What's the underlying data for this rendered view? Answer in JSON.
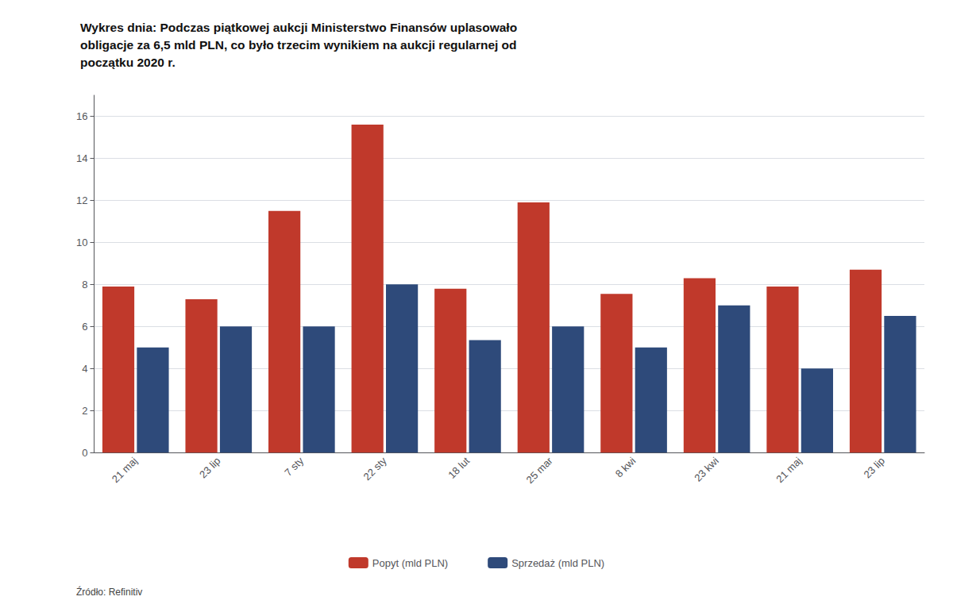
{
  "chart_data": {
    "type": "bar",
    "title": "Wykres dnia: Podczas piątkowej aukcji Ministerstwo Finansów uplasowało\nobligacje za 6,5 mld PLN, co było trzecim wynikiem na aukcji regularnej od\npoczątku 2020 r.",
    "source": "Źródło: Refinitiv",
    "categories": [
      "21 maj",
      "23 lip",
      "7 sty",
      "22 sty",
      "18 lut",
      "25 mar",
      "8 kwi",
      "23 kwi",
      "21 maj",
      "23 lip"
    ],
    "series": [
      {
        "name": "Popyt (mld PLN)",
        "color": "#C0392B",
        "values": [
          7.9,
          7.3,
          11.5,
          15.6,
          7.8,
          11.9,
          7.55,
          8.3,
          7.9,
          8.7
        ]
      },
      {
        "name": "Sprzedaż (mld PLN)",
        "color": "#2E4A7A",
        "values": [
          5.0,
          6.0,
          6.0,
          8.0,
          5.35,
          6.0,
          5.0,
          7.0,
          4.0,
          6.5
        ]
      }
    ],
    "ylim": [
      0,
      17
    ],
    "yticks": [
      0,
      2,
      4,
      6,
      8,
      10,
      12,
      14,
      16
    ],
    "grid": true,
    "legend": "bottom"
  }
}
